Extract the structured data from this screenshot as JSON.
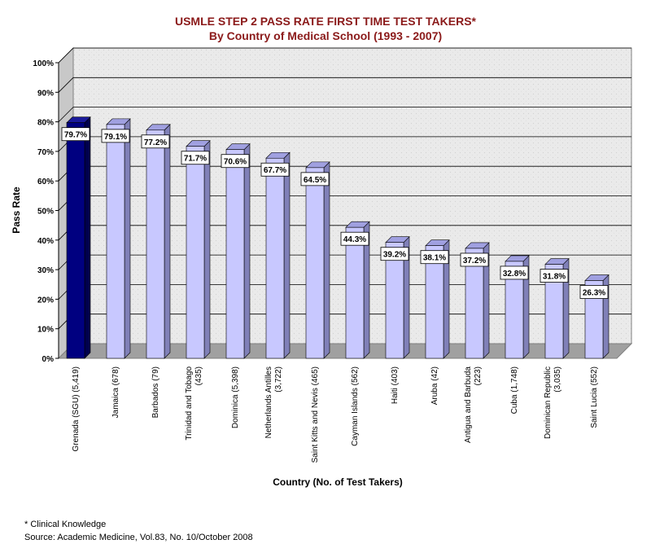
{
  "chart_data": {
    "type": "bar",
    "title": "USMLE STEP 2 PASS RATE FIRST TIME TEST TAKERS*",
    "subtitle": "By Country of Medical School (1993 - 2007)",
    "xlabel": "Country (No. of Test Takers)",
    "ylabel": "Pass Rate",
    "ylim": [
      0,
      100
    ],
    "yticks": [
      "0%",
      "10%",
      "20%",
      "30%",
      "40%",
      "50%",
      "60%",
      "70%",
      "80%",
      "90%",
      "100%"
    ],
    "grid": true,
    "categories": [
      [
        "Grenada (SGU) (5,419)"
      ],
      [
        "Jamaica (678)"
      ],
      [
        "Barbados (79)"
      ],
      [
        "Trinidad and Tobago",
        "(435)"
      ],
      [
        "Dominica (5,398)"
      ],
      [
        "Netherlands Antilles",
        "(3,722)"
      ],
      [
        "Saint Kitts and Nevis (465)"
      ],
      [
        "Cayman Islands (562)"
      ],
      [
        "Haiti (403)"
      ],
      [
        "Aruba (42)"
      ],
      [
        "Antigua and Barbuda",
        "(223)"
      ],
      [
        "Cuba (1,748)"
      ],
      [
        "Dominican Republic",
        "(3,035)"
      ],
      [
        "Saint Lucia (552)"
      ]
    ],
    "values": [
      79.7,
      79.1,
      77.2,
      71.7,
      70.6,
      67.7,
      64.5,
      44.3,
      39.2,
      38.1,
      37.2,
      32.8,
      31.8,
      26.3
    ],
    "data_labels": [
      "79.7%",
      "79.1%",
      "77.2%",
      "71.7%",
      "70.6%",
      "67.7%",
      "64.5%",
      "44.3%",
      "39.2%",
      "38.1%",
      "37.2%",
      "32.8%",
      "31.8%",
      "26.3%"
    ],
    "colors": {
      "highlight_front": "#000080",
      "highlight_side": "#00004d",
      "highlight_top": "#1a1a9a",
      "bar_front": "#c8c8ff",
      "bar_side": "#8080b8",
      "bar_top": "#a0a0e0",
      "wall": "#e8e8e8",
      "floor": "#a0a0a0",
      "title": "#8b1a1a"
    }
  },
  "footnotes": {
    "note": "* Clinical Knowledge",
    "source": "Source:  Academic Medicine, Vol.83, No. 10/October 2008"
  }
}
